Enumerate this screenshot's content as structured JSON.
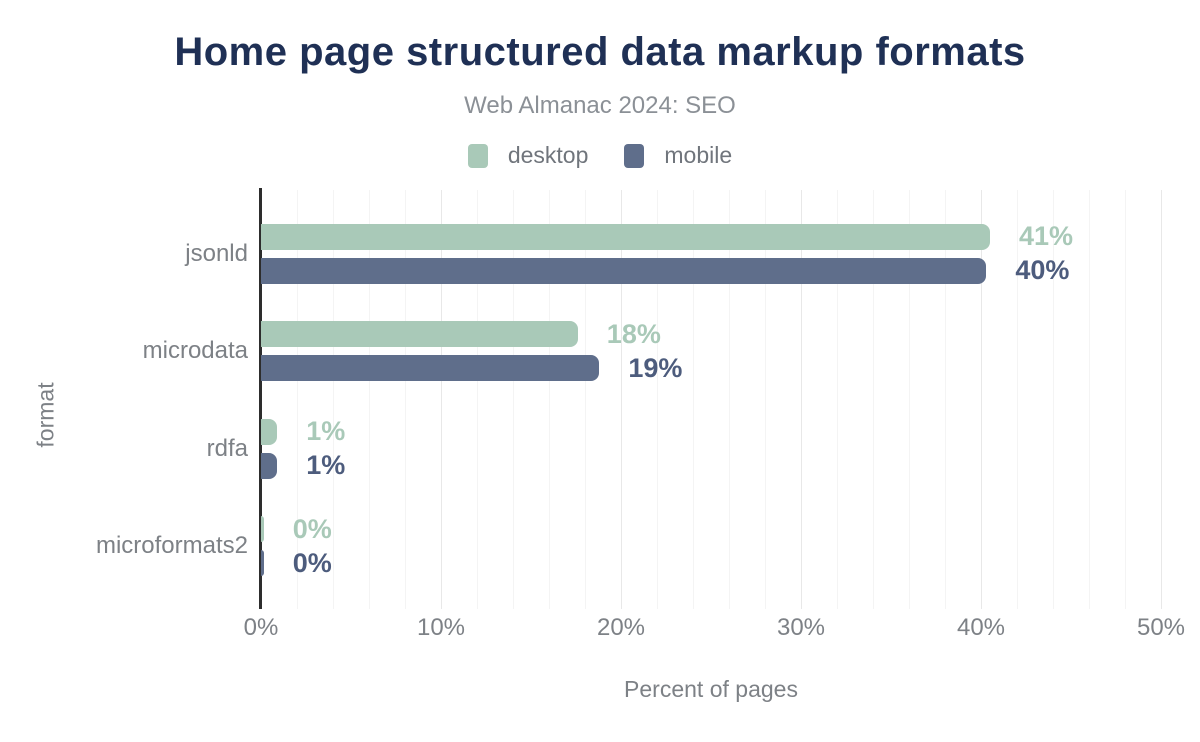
{
  "title": "Home page structured data markup formats",
  "subtitle": "Web Almanac 2024: SEO",
  "legend": [
    {
      "label": "desktop",
      "color": "#a9c9b8"
    },
    {
      "label": "mobile",
      "color": "#5f6e8b"
    }
  ],
  "colors": {
    "title_text": "#1f3055",
    "muted_text": "#7d8186",
    "subtitle_text": "#8b9096",
    "axis_line": "#2d2d2d",
    "grid_minor": "#f4f4f4",
    "grid_major": "#e8e8e8",
    "desktop_bar": "#a9c9b8",
    "mobile_bar": "#5f6e8b",
    "desktop_value_label": "#a9c9b8",
    "mobile_value_label": "#4d5c7d"
  },
  "chart_data": {
    "type": "bar",
    "orientation": "horizontal",
    "title": "Home page structured data markup formats",
    "subtitle": "Web Almanac 2024: SEO",
    "categories": [
      "jsonld",
      "microdata",
      "rdfa",
      "microformats2"
    ],
    "series": [
      {
        "name": "desktop",
        "values": [
          41,
          18,
          1,
          0
        ],
        "value_labels": [
          "41%",
          "18%",
          "1%",
          "0%"
        ],
        "bar_lengths_pct": [
          40.5,
          17.6,
          0.9,
          0.15
        ],
        "color": "#a9c9b8",
        "label_color": "#a9c9b8"
      },
      {
        "name": "mobile",
        "values": [
          40,
          19,
          1,
          0
        ],
        "value_labels": [
          "40%",
          "19%",
          "1%",
          "0%"
        ],
        "bar_lengths_pct": [
          40.3,
          18.8,
          0.9,
          0.15
        ],
        "color": "#5f6e8b",
        "label_color": "#4d5c7d"
      }
    ],
    "xlabel": "Percent of pages",
    "ylabel": "format",
    "xlim": [
      0,
      50
    ],
    "x_ticks": [
      "0%",
      "10%",
      "20%",
      "30%",
      "40%",
      "50%"
    ],
    "x_tick_values": [
      0,
      10,
      20,
      30,
      40,
      50
    ],
    "grid": {
      "minor_step": 2,
      "major_step": 10
    },
    "legend_position": "top"
  }
}
